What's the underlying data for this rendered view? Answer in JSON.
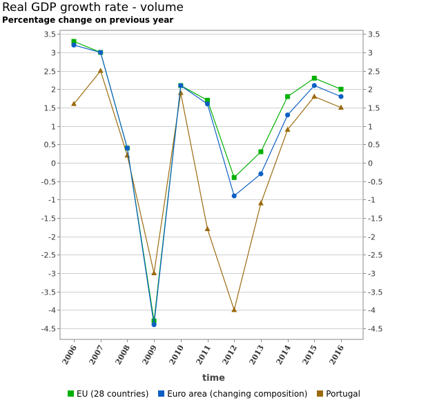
{
  "chart_data": {
    "type": "line",
    "title": "Real GDP growth rate - volume",
    "subtitle": "Percentage change on previous year",
    "xlabel": "time",
    "ylabel": "",
    "categories": [
      "2006",
      "2007",
      "2008",
      "2009",
      "2010",
      "2011",
      "2012",
      "2013",
      "2014",
      "2015",
      "2016"
    ],
    "ylim": [
      -4.8,
      3.6
    ],
    "yticks": [
      "3.5",
      "3",
      "2.5",
      "2",
      "1.5",
      "1",
      "0.5",
      "0",
      "-0.5",
      "-1",
      "-1.5",
      "-2",
      "-2.5",
      "-3",
      "-3.5",
      "-4",
      "-4.5"
    ],
    "grid": true,
    "legend_position": "bottom",
    "series": [
      {
        "name": "EU (28 countries)",
        "color": "#00b000",
        "marker": "square",
        "values": [
          3.3,
          3.0,
          0.4,
          -4.3,
          2.1,
          1.7,
          -0.4,
          0.3,
          1.8,
          2.3,
          2.0
        ]
      },
      {
        "name": "Euro area (changing composition)",
        "color": "#0d5fc4",
        "marker": "circle",
        "values": [
          3.2,
          3.0,
          0.4,
          -4.4,
          2.1,
          1.6,
          -0.9,
          -0.3,
          1.3,
          2.1,
          1.8
        ]
      },
      {
        "name": "Portugal",
        "color": "#9b6a0e",
        "marker": "triangle",
        "values": [
          1.6,
          2.5,
          0.2,
          -3.0,
          1.9,
          -1.8,
          -4.0,
          -1.1,
          0.9,
          1.8,
          1.5
        ]
      }
    ]
  }
}
